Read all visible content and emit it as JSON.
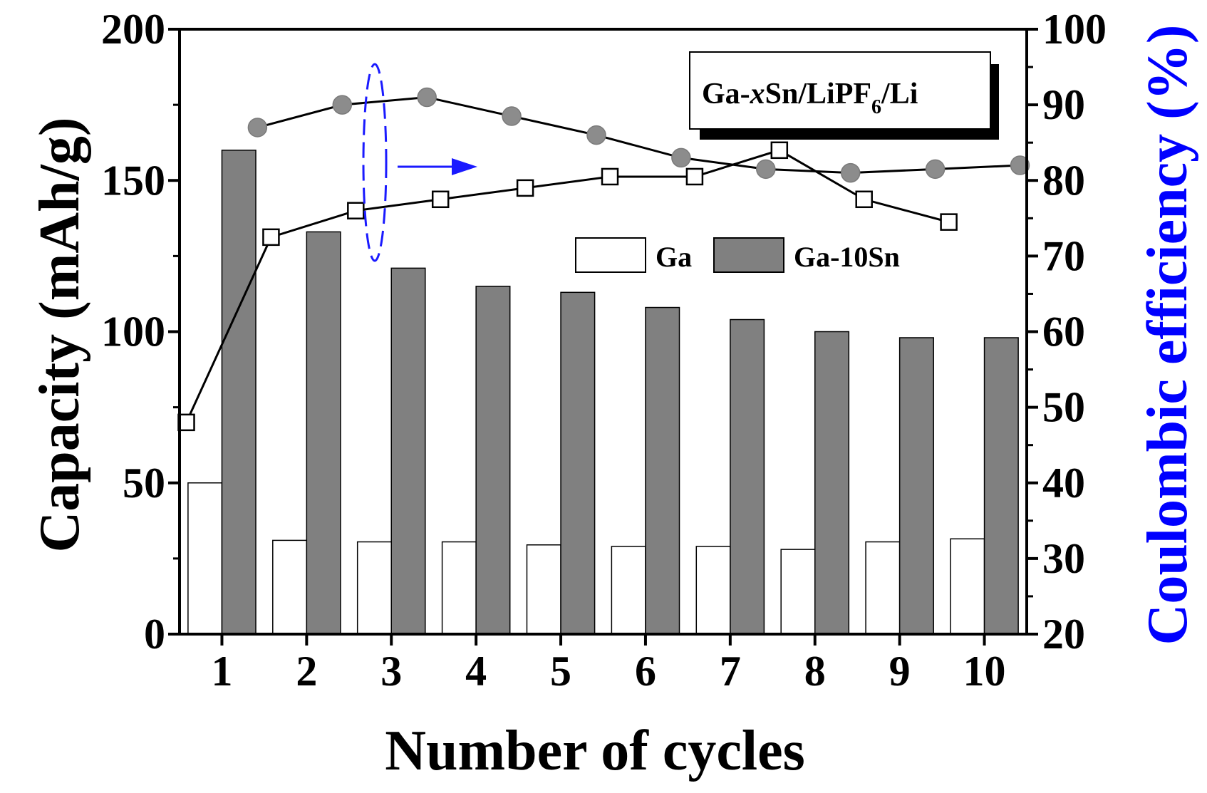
{
  "chart_data": {
    "type": "bar",
    "title": "Ga-xSn/LiPF6/Li",
    "title_parts": {
      "prefix": "Ga-",
      "italic": "x",
      "middle": "Sn/LiPF",
      "subscript": "6",
      "suffix": "/Li"
    },
    "xlabel": "Number of cycles",
    "ylabel": "Capacity (mAh/g)",
    "y2label": "Coulombic efficiency (%)",
    "categories": [
      "1",
      "2",
      "3",
      "4",
      "5",
      "6",
      "7",
      "8",
      "9",
      "10"
    ],
    "ylim": [
      0,
      200
    ],
    "y2lim": [
      20,
      100
    ],
    "yticks": [
      0,
      50,
      100,
      150,
      200
    ],
    "y2ticks": [
      20,
      30,
      40,
      50,
      60,
      70,
      80,
      90,
      100
    ],
    "series": [
      {
        "name": "Ga",
        "kind": "bar",
        "axis": "left",
        "color": "#ffffff",
        "values": [
          50,
          31,
          30.5,
          30.5,
          29.5,
          29,
          29,
          28,
          30.5,
          31.5
        ]
      },
      {
        "name": "Ga-10Sn",
        "kind": "bar",
        "axis": "left",
        "color": "#808080",
        "values": [
          160,
          133,
          121,
          115,
          113,
          108,
          104,
          100,
          98,
          98
        ]
      },
      {
        "name": "Ga",
        "kind": "line",
        "marker": "square-open",
        "axis": "right",
        "legend": false,
        "values": [
          48,
          72.5,
          76,
          77.5,
          79,
          80.5,
          80.5,
          84,
          77.5,
          74.5
        ]
      },
      {
        "name": "Ga-10Sn",
        "kind": "line",
        "marker": "circle-filled",
        "axis": "right",
        "legend": false,
        "values": [
          87,
          90,
          91,
          88.5,
          86,
          83,
          81.5,
          81,
          81.5,
          82
        ]
      }
    ],
    "legend": "top-right",
    "annotation": "dashed ellipse around curves with arrow pointing to the right axis"
  },
  "colors": {
    "bar_ga": "#ffffff",
    "bar_ga10sn": "#808080",
    "circle_marker": "#8c8c8c",
    "right_axis_label": "#0000ff",
    "annotation": "#1a1aff"
  }
}
